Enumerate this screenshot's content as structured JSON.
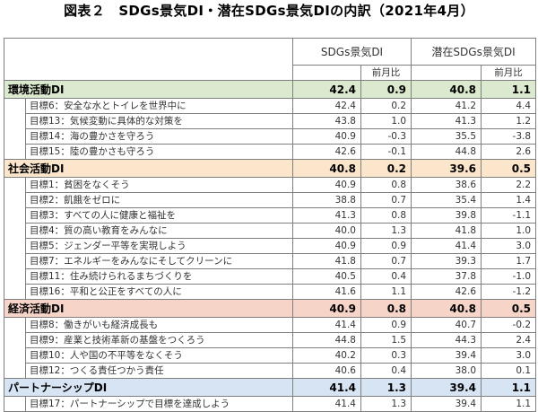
{
  "title": "図表２　SDGs景気DI・潜在SDGs景気DIの内訳（2021年4月）",
  "headers": {
    "sdgs": "SDGs景気DI",
    "latent": "潜在SDGs景気DI",
    "mom": "前月比"
  },
  "categories": [
    {
      "key": "env",
      "label": "環境活動DI",
      "sdgs": "42.4",
      "sdgs_mom": "0.9",
      "latent": "40.8",
      "latent_mom": "1.1",
      "items": [
        {
          "label": "目標6：安全な水とトイレを世界中に",
          "sdgs": "42.4",
          "sdgs_mom": "0.2",
          "latent": "41.2",
          "latent_mom": "4.4"
        },
        {
          "label": "目標13：気候変動に具体的な対策を",
          "sdgs": "43.8",
          "sdgs_mom": "1.0",
          "latent": "41.3",
          "latent_mom": "1.2"
        },
        {
          "label": "目標14：海の豊かさを守ろう",
          "sdgs": "40.9",
          "sdgs_mom": "-0.3",
          "latent": "35.5",
          "latent_mom": "-3.8"
        },
        {
          "label": "目標15：陸の豊かさも守ろう",
          "sdgs": "42.6",
          "sdgs_mom": "-0.1",
          "latent": "44.8",
          "latent_mom": "2.6"
        }
      ]
    },
    {
      "key": "soc",
      "label": "社会活動DI",
      "sdgs": "40.8",
      "sdgs_mom": "0.2",
      "latent": "39.6",
      "latent_mom": "0.5",
      "items": [
        {
          "label": "目標1：貧困をなくそう",
          "sdgs": "40.9",
          "sdgs_mom": "0.8",
          "latent": "38.6",
          "latent_mom": "2.2"
        },
        {
          "label": "目標2：飢餓をゼロに",
          "sdgs": "38.8",
          "sdgs_mom": "0.7",
          "latent": "35.4",
          "latent_mom": "1.4"
        },
        {
          "label": "目標3：すべての人に健康と福祉を",
          "sdgs": "41.3",
          "sdgs_mom": "0.8",
          "latent": "39.8",
          "latent_mom": "-1.1"
        },
        {
          "label": "目標4：質の高い教育をみんなに",
          "sdgs": "40.0",
          "sdgs_mom": "1.3",
          "latent": "41.8",
          "latent_mom": "1.0"
        },
        {
          "label": "目標5：ジェンダー平等を実現しよう",
          "sdgs": "40.9",
          "sdgs_mom": "0.9",
          "latent": "41.4",
          "latent_mom": "3.0"
        },
        {
          "label": "目標7：エネルギーをみんなにそしてクリーンに",
          "sdgs": "41.8",
          "sdgs_mom": "0.7",
          "latent": "39.3",
          "latent_mom": "1.7"
        },
        {
          "label": "目標11：住み続けられるまちづくりを",
          "sdgs": "40.5",
          "sdgs_mom": "0.4",
          "latent": "37.8",
          "latent_mom": "-1.0"
        },
        {
          "label": "目標16：平和と公正をすべての人に",
          "sdgs": "41.6",
          "sdgs_mom": "1.1",
          "latent": "42.6",
          "latent_mom": "-1.2"
        }
      ]
    },
    {
      "key": "eco",
      "label": "経済活動DI",
      "sdgs": "40.9",
      "sdgs_mom": "0.8",
      "latent": "40.8",
      "latent_mom": "0.5",
      "items": [
        {
          "label": "目標8：働きがいも経済成長も",
          "sdgs": "41.4",
          "sdgs_mom": "0.9",
          "latent": "40.7",
          "latent_mom": "-0.2"
        },
        {
          "label": "目標9：産業と技術革新の基盤をつくろう",
          "sdgs": "44.8",
          "sdgs_mom": "1.5",
          "latent": "44.3",
          "latent_mom": "2.4"
        },
        {
          "label": "目標10：人や国の不平等をなくそう",
          "sdgs": "40.2",
          "sdgs_mom": "0.3",
          "latent": "39.4",
          "latent_mom": "3.0"
        },
        {
          "label": "目標12：つくる責任つかう責任",
          "sdgs": "40.6",
          "sdgs_mom": "0.4",
          "latent": "38.0",
          "latent_mom": "0.1"
        }
      ]
    },
    {
      "key": "par",
      "label": "パートナーシップDI",
      "sdgs": "41.4",
      "sdgs_mom": "1.3",
      "latent": "39.4",
      "latent_mom": "1.1",
      "items": [
        {
          "label": "目標17：パートナーシップで目標を達成しよう",
          "sdgs": "41.4",
          "sdgs_mom": "1.3",
          "latent": "39.4",
          "latent_mom": "1.1"
        }
      ]
    }
  ]
}
